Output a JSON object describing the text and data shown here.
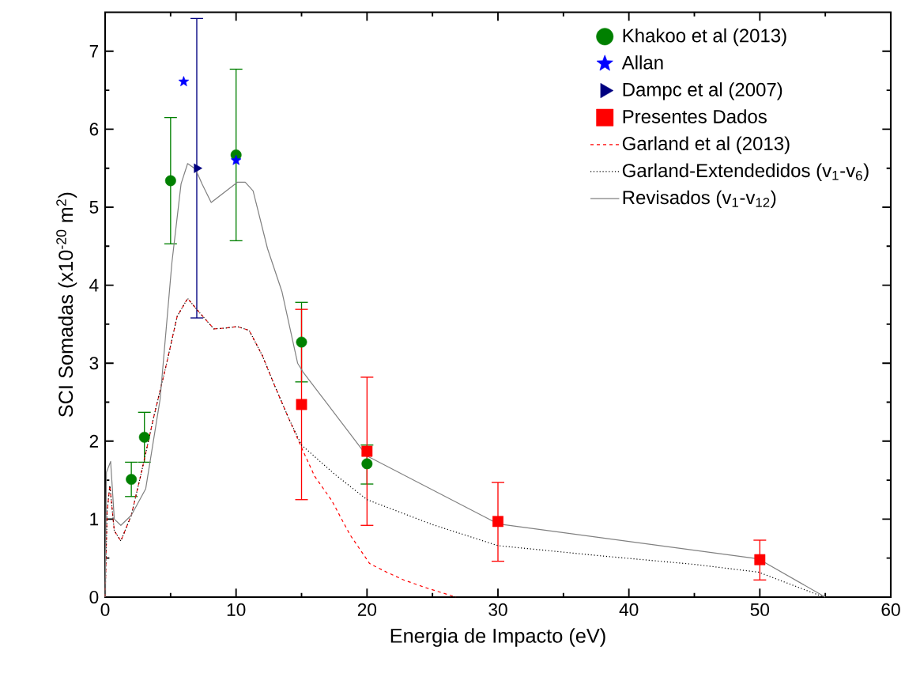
{
  "chart_data": {
    "type": "line",
    "xlabel": "Energia de Impacto (eV)",
    "ylabel": "SCI Somadas (x10$^{-20}$ m$^{2}$)",
    "xlim": [
      0,
      60
    ],
    "ylim": [
      0,
      7.5
    ],
    "xticks": [
      0,
      10,
      20,
      30,
      40,
      50,
      60
    ],
    "yticks": [
      0,
      1,
      2,
      3,
      4,
      5,
      6,
      7
    ],
    "legend": "top right",
    "series": [
      {
        "name": "Khakoo et al (2013)",
        "type": "scatter",
        "marker": "circle",
        "color": "#008000",
        "x": [
          2,
          3,
          5,
          10,
          15,
          20
        ],
        "values": [
          1.51,
          2.05,
          5.34,
          5.67,
          3.27,
          1.71
        ],
        "errors": [
          [
            1.29,
            1.73
          ],
          [
            1.73,
            2.37
          ],
          [
            4.53,
            6.15
          ],
          [
            4.57,
            6.77
          ],
          [
            2.76,
            3.78
          ],
          [
            1.45,
            1.95
          ]
        ]
      },
      {
        "name": "Allan",
        "type": "scatter",
        "marker": "star",
        "color": "#0000ff",
        "x": [
          6,
          10
        ],
        "values": [
          6.61,
          5.6
        ]
      },
      {
        "name": "Dampc et al (2007)",
        "type": "scatter",
        "marker": "triangle",
        "color": "#000080",
        "x": [
          7
        ],
        "values": [
          5.5
        ],
        "errors": [
          [
            3.58,
            7.42
          ]
        ]
      },
      {
        "name": "Presentes Dados",
        "type": "scatter",
        "marker": "square",
        "color": "#ff0000",
        "x": [
          15,
          20,
          30,
          50
        ],
        "values": [
          2.47,
          1.87,
          0.97,
          0.48
        ],
        "errors": [
          [
            1.25,
            3.69
          ],
          [
            0.92,
            2.82
          ],
          [
            0.46,
            1.47
          ],
          [
            0.22,
            0.73
          ]
        ]
      },
      {
        "name": "Garland et al (2013)",
        "line_style": "dashed",
        "color": "#ff0000",
        "x": [
          0,
          0.15,
          0.36,
          0.7,
          1.2,
          2,
          2.8,
          3.7,
          4.7,
          5.5,
          6.3,
          7.2,
          8.3,
          9.2,
          10.1,
          11,
          12,
          12.9,
          14,
          14.7,
          15.1,
          16,
          17.3,
          18.7,
          20.2,
          21.5,
          22.8,
          24.5,
          26.8
        ],
        "values": [
          0,
          1.1,
          1.43,
          0.85,
          0.72,
          1.05,
          1.62,
          2.3,
          3.0,
          3.6,
          3.83,
          3.65,
          3.44,
          3.45,
          3.47,
          3.42,
          3.1,
          2.73,
          2.3,
          2.03,
          1.88,
          1.55,
          1.24,
          0.8,
          0.43,
          0.32,
          0.22,
          0.12,
          0
        ]
      },
      {
        "name": "Garland-Extendedidos (v$_{1}$-v$_{6}$)",
        "line_style": "dotted",
        "color": "#000000",
        "x": [
          0,
          0.15,
          0.36,
          0.7,
          1.2,
          2,
          2.8,
          3.7,
          4.7,
          5.5,
          6.3,
          7.2,
          8.3,
          9.2,
          10.1,
          11,
          12,
          12.9,
          14,
          15,
          17.5,
          20,
          25,
          30,
          37.8,
          45,
          49.9,
          54.9
        ],
        "values": [
          0,
          1.1,
          1.43,
          0.85,
          0.72,
          1.05,
          1.62,
          2.3,
          3.0,
          3.6,
          3.83,
          3.65,
          3.44,
          3.45,
          3.47,
          3.42,
          3.1,
          2.73,
          2.3,
          1.95,
          1.58,
          1.25,
          0.93,
          0.66,
          0.53,
          0.42,
          0.32,
          0
        ]
      },
      {
        "name": "Revisados (v$_{1}$-v$_{12}$)",
        "line_style": "solid",
        "color": "#808080",
        "x": [
          0,
          0.1,
          0.42,
          0.7,
          1.2,
          2,
          3.1,
          4.2,
          5.1,
          5.8,
          6.3,
          6.9,
          7.4,
          8.1,
          9.1,
          10.1,
          10.7,
          11.3,
          12.4,
          13.5,
          14.7,
          15.1,
          20,
          30,
          49.9,
          55
        ],
        "values": [
          0,
          1.6,
          1.74,
          1.0,
          0.92,
          1.05,
          1.39,
          2.54,
          4.29,
          5.3,
          5.56,
          5.49,
          5.3,
          5.06,
          5.19,
          5.32,
          5.32,
          5.21,
          4.47,
          3.92,
          3.0,
          2.89,
          1.81,
          0.94,
          0.49,
          0
        ]
      }
    ]
  }
}
